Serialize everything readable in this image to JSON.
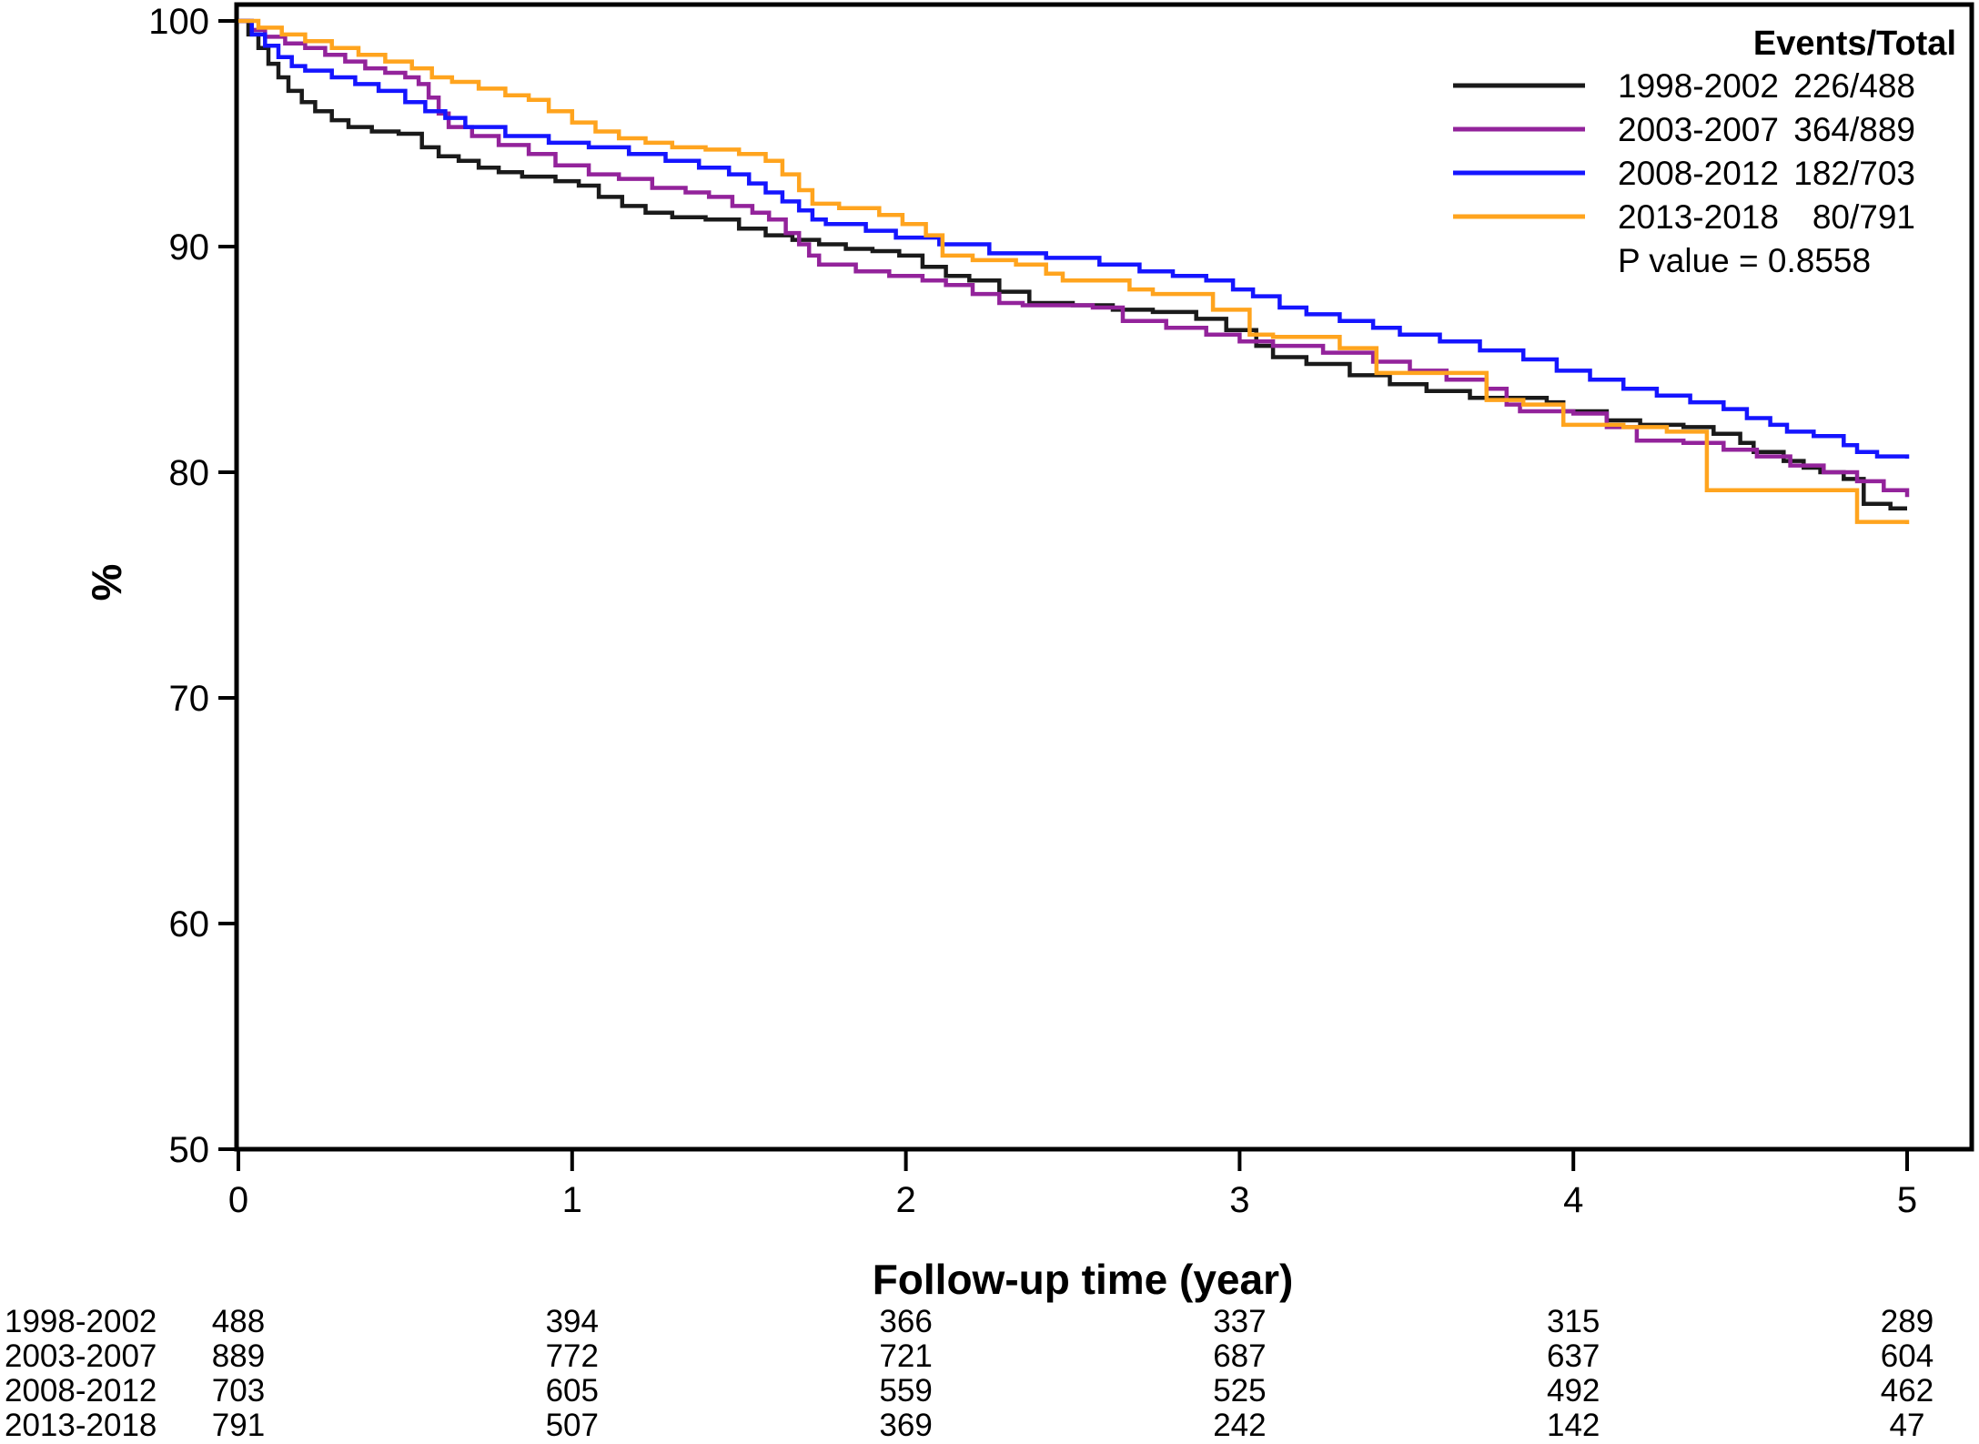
{
  "chart_data": {
    "type": "line",
    "subtype": "kaplan-meier-step",
    "title": "",
    "xlabel": "Follow-up time (year)",
    "ylabel": "%",
    "xlim": [
      0,
      5
    ],
    "ylim": [
      50,
      100
    ],
    "xticks": [
      0,
      1,
      2,
      3,
      4,
      5
    ],
    "yticks": [
      50,
      60,
      70,
      80,
      90,
      100
    ],
    "grid": false,
    "legend_position": "top-right",
    "legend_header": "Events/Total",
    "p_value_label": "P value = 0.8558",
    "series": [
      {
        "name": "1998-2002",
        "events_total": "226/488",
        "color": "#1a1a1a",
        "points": [
          [
            0,
            100
          ],
          [
            0.03,
            99.4
          ],
          [
            0.06,
            98.8
          ],
          [
            0.09,
            98.1
          ],
          [
            0.12,
            97.5
          ],
          [
            0.15,
            96.9
          ],
          [
            0.19,
            96.4
          ],
          [
            0.23,
            96.0
          ],
          [
            0.28,
            95.6
          ],
          [
            0.33,
            95.3
          ],
          [
            0.4,
            95.1
          ],
          [
            0.48,
            95.0
          ],
          [
            0.55,
            94.4
          ],
          [
            0.6,
            94.0
          ],
          [
            0.66,
            93.8
          ],
          [
            0.72,
            93.5
          ],
          [
            0.78,
            93.3
          ],
          [
            0.85,
            93.1
          ],
          [
            0.95,
            92.9
          ],
          [
            1.02,
            92.7
          ],
          [
            1.08,
            92.2
          ],
          [
            1.15,
            91.8
          ],
          [
            1.22,
            91.5
          ],
          [
            1.3,
            91.3
          ],
          [
            1.4,
            91.2
          ],
          [
            1.5,
            90.8
          ],
          [
            1.58,
            90.5
          ],
          [
            1.66,
            90.3
          ],
          [
            1.74,
            90.1
          ],
          [
            1.82,
            89.9
          ],
          [
            1.9,
            89.8
          ],
          [
            1.98,
            89.6
          ],
          [
            2.05,
            89.1
          ],
          [
            2.12,
            88.7
          ],
          [
            2.19,
            88.5
          ],
          [
            2.28,
            88.0
          ],
          [
            2.37,
            87.5
          ],
          [
            2.5,
            87.4
          ],
          [
            2.62,
            87.2
          ],
          [
            2.74,
            87.1
          ],
          [
            2.87,
            86.8
          ],
          [
            2.96,
            86.3
          ],
          [
            3.05,
            85.6
          ],
          [
            3.1,
            85.1
          ],
          [
            3.2,
            84.8
          ],
          [
            3.33,
            84.3
          ],
          [
            3.45,
            83.9
          ],
          [
            3.56,
            83.6
          ],
          [
            3.69,
            83.3
          ],
          [
            3.92,
            83.1
          ],
          [
            3.97,
            82.7
          ],
          [
            4.1,
            82.3
          ],
          [
            4.2,
            82.1
          ],
          [
            4.33,
            82.0
          ],
          [
            4.42,
            81.7
          ],
          [
            4.5,
            81.3
          ],
          [
            4.54,
            80.9
          ],
          [
            4.63,
            80.5
          ],
          [
            4.69,
            80.2
          ],
          [
            4.74,
            80.0
          ],
          [
            4.81,
            79.7
          ],
          [
            4.87,
            78.6
          ],
          [
            4.95,
            78.4
          ],
          [
            5,
            78.4
          ]
        ]
      },
      {
        "name": "2003-2007",
        "events_total": "364/889",
        "color": "#93239b",
        "points": [
          [
            0,
            100
          ],
          [
            0.04,
            99.6
          ],
          [
            0.08,
            99.3
          ],
          [
            0.14,
            99.0
          ],
          [
            0.2,
            98.8
          ],
          [
            0.26,
            98.5
          ],
          [
            0.32,
            98.2
          ],
          [
            0.38,
            97.9
          ],
          [
            0.44,
            97.7
          ],
          [
            0.5,
            97.5
          ],
          [
            0.54,
            97.2
          ],
          [
            0.57,
            96.6
          ],
          [
            0.6,
            95.9
          ],
          [
            0.63,
            95.3
          ],
          [
            0.7,
            94.9
          ],
          [
            0.78,
            94.5
          ],
          [
            0.87,
            94.1
          ],
          [
            0.95,
            93.6
          ],
          [
            1.05,
            93.2
          ],
          [
            1.14,
            93.0
          ],
          [
            1.24,
            92.6
          ],
          [
            1.34,
            92.4
          ],
          [
            1.41,
            92.2
          ],
          [
            1.48,
            91.8
          ],
          [
            1.54,
            91.5
          ],
          [
            1.59,
            91.2
          ],
          [
            1.64,
            90.6
          ],
          [
            1.68,
            90.1
          ],
          [
            1.71,
            89.6
          ],
          [
            1.74,
            89.2
          ],
          [
            1.85,
            88.9
          ],
          [
            1.95,
            88.7
          ],
          [
            2.05,
            88.5
          ],
          [
            2.12,
            88.3
          ],
          [
            2.2,
            87.9
          ],
          [
            2.28,
            87.5
          ],
          [
            2.35,
            87.4
          ],
          [
            2.56,
            87.3
          ],
          [
            2.65,
            86.7
          ],
          [
            2.78,
            86.4
          ],
          [
            2.9,
            86.1
          ],
          [
            3,
            85.8
          ],
          [
            3.1,
            85.6
          ],
          [
            3.25,
            85.3
          ],
          [
            3.4,
            84.9
          ],
          [
            3.51,
            84.5
          ],
          [
            3.62,
            84.1
          ],
          [
            3.74,
            83.7
          ],
          [
            3.8,
            83.0
          ],
          [
            3.84,
            82.7
          ],
          [
            4,
            82.6
          ],
          [
            4.1,
            82.0
          ],
          [
            4.19,
            81.4
          ],
          [
            4.33,
            81.3
          ],
          [
            4.45,
            81.0
          ],
          [
            4.55,
            80.7
          ],
          [
            4.65,
            80.3
          ],
          [
            4.75,
            80.0
          ],
          [
            4.85,
            79.6
          ],
          [
            4.93,
            79.2
          ],
          [
            5,
            78.9
          ]
        ]
      },
      {
        "name": "2008-2012",
        "events_total": "182/703",
        "color": "#1515ff",
        "points": [
          [
            0,
            100
          ],
          [
            0.04,
            99.4
          ],
          [
            0.08,
            98.9
          ],
          [
            0.12,
            98.4
          ],
          [
            0.16,
            98.0
          ],
          [
            0.2,
            97.8
          ],
          [
            0.28,
            97.5
          ],
          [
            0.35,
            97.2
          ],
          [
            0.42,
            96.9
          ],
          [
            0.5,
            96.4
          ],
          [
            0.56,
            96.0
          ],
          [
            0.62,
            95.7
          ],
          [
            0.68,
            95.3
          ],
          [
            0.8,
            94.9
          ],
          [
            0.93,
            94.6
          ],
          [
            1.05,
            94.4
          ],
          [
            1.17,
            94.1
          ],
          [
            1.28,
            93.8
          ],
          [
            1.38,
            93.5
          ],
          [
            1.47,
            93.2
          ],
          [
            1.53,
            92.8
          ],
          [
            1.58,
            92.4
          ],
          [
            1.63,
            92.0
          ],
          [
            1.68,
            91.6
          ],
          [
            1.72,
            91.2
          ],
          [
            1.76,
            91.0
          ],
          [
            1.88,
            90.7
          ],
          [
            1.97,
            90.4
          ],
          [
            2.1,
            90.1
          ],
          [
            2.25,
            89.7
          ],
          [
            2.42,
            89.5
          ],
          [
            2.58,
            89.2
          ],
          [
            2.7,
            88.9
          ],
          [
            2.8,
            88.7
          ],
          [
            2.9,
            88.5
          ],
          [
            2.98,
            88.1
          ],
          [
            3.04,
            87.8
          ],
          [
            3.12,
            87.3
          ],
          [
            3.2,
            87.0
          ],
          [
            3.3,
            86.7
          ],
          [
            3.4,
            86.4
          ],
          [
            3.48,
            86.1
          ],
          [
            3.6,
            85.8
          ],
          [
            3.72,
            85.4
          ],
          [
            3.85,
            85.0
          ],
          [
            3.95,
            84.5
          ],
          [
            4.05,
            84.1
          ],
          [
            4.15,
            83.7
          ],
          [
            4.25,
            83.4
          ],
          [
            4.35,
            83.1
          ],
          [
            4.45,
            82.8
          ],
          [
            4.52,
            82.4
          ],
          [
            4.59,
            82.1
          ],
          [
            4.64,
            81.8
          ],
          [
            4.72,
            81.6
          ],
          [
            4.81,
            81.2
          ],
          [
            4.85,
            80.9
          ],
          [
            4.91,
            80.7
          ],
          [
            5,
            80.6
          ]
        ]
      },
      {
        "name": "2013-2018",
        "events_total": "80/791",
        "color": "#ffa41e",
        "points": [
          [
            0,
            100
          ],
          [
            0.06,
            99.7
          ],
          [
            0.13,
            99.4
          ],
          [
            0.2,
            99.1
          ],
          [
            0.28,
            98.8
          ],
          [
            0.36,
            98.5
          ],
          [
            0.44,
            98.2
          ],
          [
            0.52,
            97.9
          ],
          [
            0.58,
            97.5
          ],
          [
            0.64,
            97.3
          ],
          [
            0.72,
            97.0
          ],
          [
            0.8,
            96.7
          ],
          [
            0.87,
            96.5
          ],
          [
            0.93,
            96.0
          ],
          [
            1,
            95.5
          ],
          [
            1.07,
            95.1
          ],
          [
            1.14,
            94.8
          ],
          [
            1.22,
            94.6
          ],
          [
            1.3,
            94.4
          ],
          [
            1.4,
            94.3
          ],
          [
            1.5,
            94.1
          ],
          [
            1.58,
            93.8
          ],
          [
            1.63,
            93.2
          ],
          [
            1.68,
            92.5
          ],
          [
            1.72,
            91.9
          ],
          [
            1.8,
            91.7
          ],
          [
            1.92,
            91.4
          ],
          [
            1.99,
            91.0
          ],
          [
            2.06,
            90.5
          ],
          [
            2.11,
            89.6
          ],
          [
            2.2,
            89.4
          ],
          [
            2.33,
            89.2
          ],
          [
            2.42,
            88.8
          ],
          [
            2.47,
            88.5
          ],
          [
            2.67,
            88.1
          ],
          [
            2.74,
            87.9
          ],
          [
            2.92,
            87.2
          ],
          [
            3.03,
            86.1
          ],
          [
            3.1,
            86.0
          ],
          [
            3.3,
            85.5
          ],
          [
            3.41,
            84.4
          ],
          [
            3.74,
            83.2
          ],
          [
            3.85,
            83.0
          ],
          [
            3.97,
            82.1
          ],
          [
            4.15,
            82.0
          ],
          [
            4.28,
            81.8
          ],
          [
            4.4,
            79.2
          ],
          [
            4.85,
            77.8
          ],
          [
            5,
            77.7
          ]
        ]
      }
    ],
    "risk_table": {
      "times": [
        0,
        1,
        2,
        3,
        4,
        5
      ],
      "rows": [
        {
          "name": "1998-2002",
          "counts": [
            488,
            394,
            366,
            337,
            315,
            289
          ]
        },
        {
          "name": "2003-2007",
          "counts": [
            889,
            772,
            721,
            687,
            637,
            604
          ]
        },
        {
          "name": "2008-2012",
          "counts": [
            703,
            605,
            559,
            525,
            492,
            462
          ]
        },
        {
          "name": "2013-2018",
          "counts": [
            791,
            507,
            369,
            242,
            142,
            47
          ]
        }
      ]
    }
  }
}
